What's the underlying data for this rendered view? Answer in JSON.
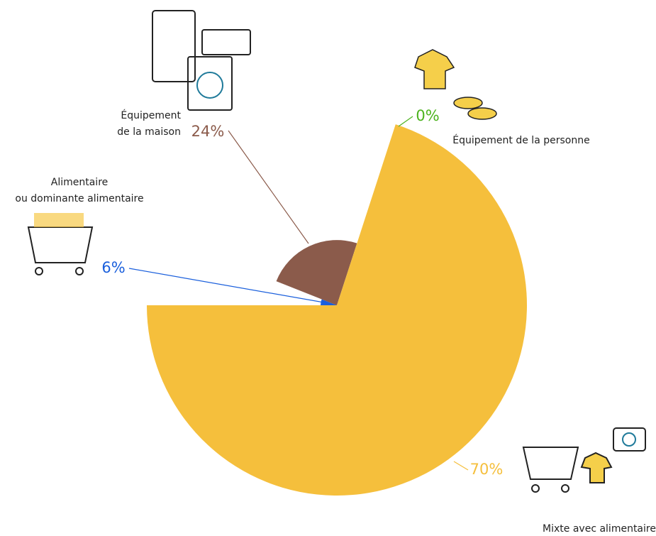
{
  "chart_data": {
    "type": "pie",
    "categories": [
      [
        "Alimentaire",
        "ou dominante alimentaire"
      ],
      [
        "Équipement",
        "de la maison"
      ],
      [
        "Équipement de la personne"
      ],
      [
        "Mixte avec alimentaire"
      ]
    ],
    "values": [
      6,
      24,
      0,
      70
    ],
    "value_labels": [
      "6%",
      "24%",
      "0%",
      "70%"
    ],
    "colors": [
      "#1a5fdc",
      "#8b5b4b",
      "#4db31f",
      "#f5bf3c"
    ]
  }
}
